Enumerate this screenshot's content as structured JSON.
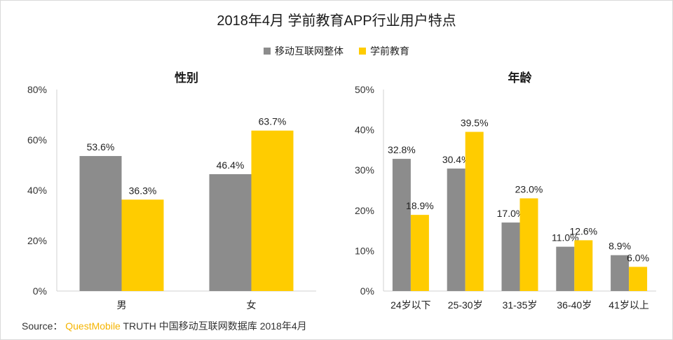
{
  "title": "2018年4月 学前教育APP行业用户特点",
  "legend": [
    {
      "name": "移动互联网整体",
      "color": "#8c8c8c"
    },
    {
      "name": "学前教育",
      "color": "#ffcc00"
    }
  ],
  "source": {
    "prefix": "Source：",
    "brand": "QuestMobile",
    "text": "TRUTH 中国移动互联网数据库 2018年4月"
  },
  "chart_data": [
    {
      "type": "bar",
      "title": "性别",
      "categories": [
        "男",
        "女"
      ],
      "series": [
        {
          "name": "移动互联网整体",
          "values": [
            53.6,
            46.4
          ],
          "color": "#8c8c8c"
        },
        {
          "name": "学前教育",
          "values": [
            36.3,
            63.7
          ],
          "color": "#ffcc00"
        }
      ],
      "ylim": [
        0,
        80
      ],
      "yticks": [
        0,
        20,
        40,
        60,
        80
      ],
      "tick_suffix": "%",
      "value_suffix": "%",
      "grid": false
    },
    {
      "type": "bar",
      "title": "年龄",
      "categories": [
        "24岁以下",
        "25-30岁",
        "31-35岁",
        "36-40岁",
        "41岁以上"
      ],
      "series": [
        {
          "name": "移动互联网整体",
          "values": [
            32.8,
            30.4,
            17.0,
            11.0,
            8.9
          ],
          "color": "#8c8c8c"
        },
        {
          "name": "学前教育",
          "values": [
            18.9,
            39.5,
            23.0,
            12.6,
            6.0
          ],
          "color": "#ffcc00"
        }
      ],
      "ylim": [
        0,
        50
      ],
      "yticks": [
        0,
        10,
        20,
        30,
        40,
        50
      ],
      "tick_suffix": "%",
      "value_suffix": "%",
      "grid": false
    }
  ]
}
